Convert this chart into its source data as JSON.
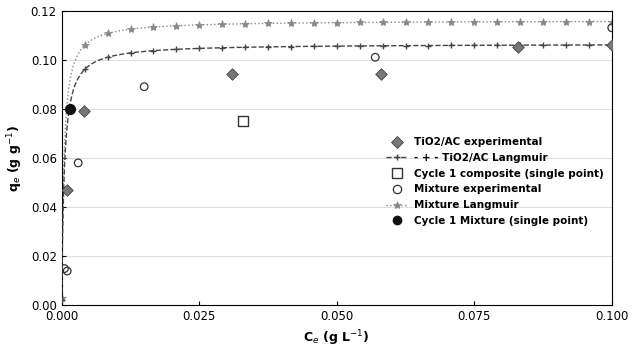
{
  "xlabel": "C$_e$ (g L$^{-1}$)",
  "ylabel": "q$_e$ (g g$^{-1}$)",
  "xlim": [
    0,
    0.1
  ],
  "ylim": [
    0,
    0.12
  ],
  "xticks": [
    0,
    0.025,
    0.05,
    0.075,
    0.1
  ],
  "yticks": [
    0,
    0.02,
    0.04,
    0.06,
    0.08,
    0.1,
    0.12
  ],
  "langmuir_TiO2AC": {
    "qm": 0.1065,
    "KL": 2200,
    "color": "#444444",
    "linestyle": "--",
    "linewidth": 1.0
  },
  "langmuir_mixture": {
    "qm": 0.116,
    "KL": 2500,
    "color": "#888888",
    "linestyle": ":",
    "linewidth": 1.0
  },
  "TiO2AC_exp_x": [
    0.001,
    0.004,
    0.031,
    0.058,
    0.083,
    0.1
  ],
  "TiO2AC_exp_y": [
    0.047,
    0.079,
    0.094,
    0.094,
    0.105,
    0.106
  ],
  "mixture_exp_x": [
    0.0005,
    0.001,
    0.003,
    0.015,
    0.057,
    0.1
  ],
  "mixture_exp_y": [
    0.015,
    0.014,
    0.058,
    0.089,
    0.101,
    0.113
  ],
  "cycle1_composite_x": [
    0.033
  ],
  "cycle1_composite_y": [
    0.075
  ],
  "cycle1_mixture_x": [
    0.0015
  ],
  "cycle1_mixture_y": [
    0.08
  ],
  "marker_sparse_n": 25,
  "legend_labels": [
    "TiO2/AC experimental",
    "-+- TiO2/AC Langmuir",
    "Cycle 1 composite (single point)",
    "Mixture experimental",
    "*  Mixture Langmuir",
    "Cycle 1 Mixture (single point)"
  ],
  "figsize": [
    6.34,
    3.54
  ],
  "dpi": 100
}
